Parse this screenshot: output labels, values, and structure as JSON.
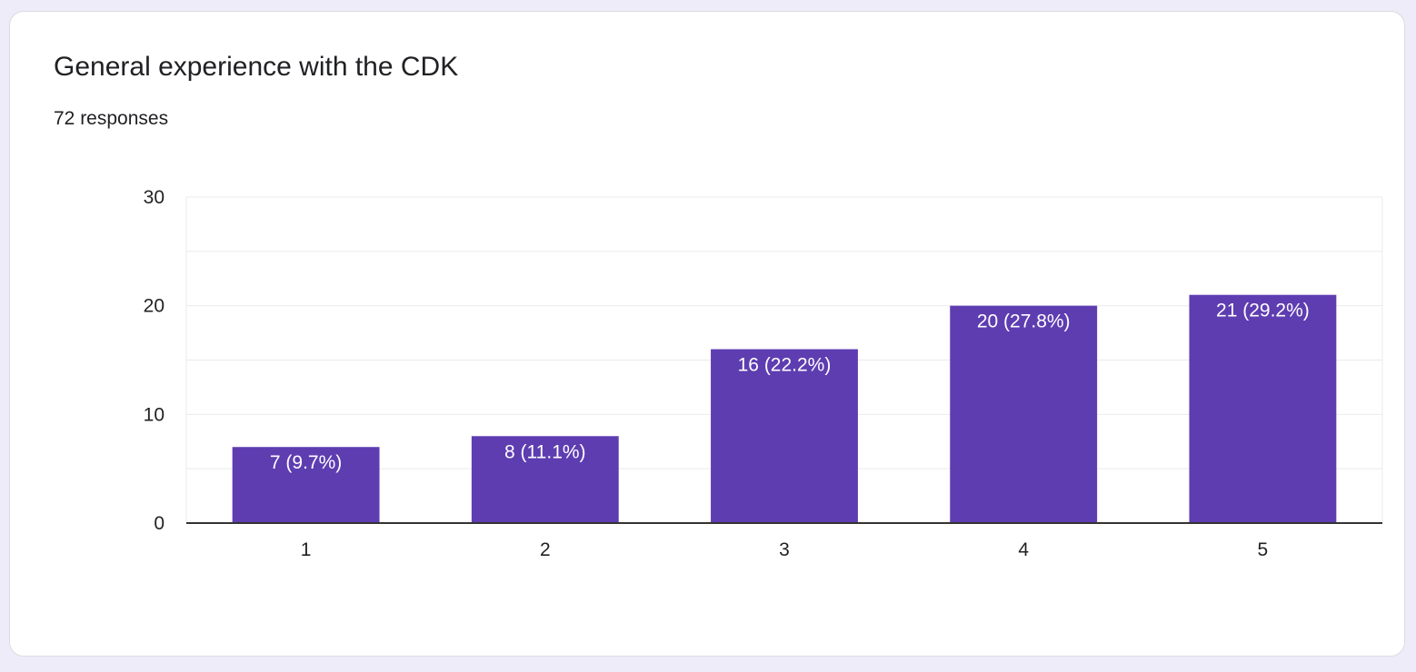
{
  "card": {
    "title": "General experience with the CDK",
    "subtitle": "72 responses"
  },
  "chart_data": {
    "type": "bar",
    "categories": [
      "1",
      "2",
      "3",
      "4",
      "5"
    ],
    "values": [
      7,
      8,
      16,
      20,
      21
    ],
    "data_labels": [
      "7 (9.7%)",
      "8 (11.1%)",
      "16 (22.2%)",
      "20 (27.8%)",
      "21 (29.2%)"
    ],
    "yticks": [
      "0",
      "10",
      "20",
      "30"
    ],
    "ylim": [
      0,
      30
    ],
    "grid": true,
    "colors": {
      "bar": "#5e3db1",
      "grid": "#ebebeb",
      "axis": "#333333",
      "text": "#222222"
    }
  }
}
